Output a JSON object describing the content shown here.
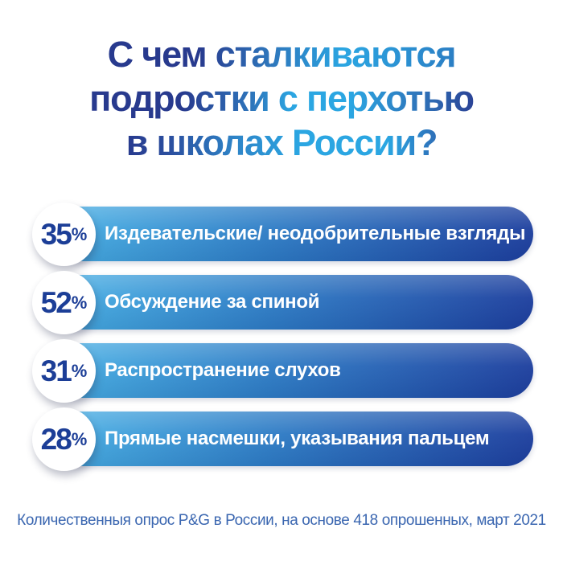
{
  "title": {
    "lines": [
      "С чем сталкиваются",
      "подростки с перхотью",
      "в школах России?"
    ],
    "full": "С чем сталкиваются подростки с перхотью в школах России?"
  },
  "chart_data": {
    "type": "bar",
    "orientation": "horizontal",
    "unit": "%",
    "title": "С чем сталкиваются подростки с перхотью в школах России?",
    "categories": [
      "Издевательские/ неодобрительные взгляды",
      "Обсуждение за спиной",
      "Распространение слухов",
      "Прямые насмешки, указывания пальцем"
    ],
    "values": [
      35,
      52,
      31,
      28
    ],
    "source": "Количественныя опрос P&G в России, на основе 418 опрошенных, март 2021",
    "layout_hint": "equal-length gradient pill bars with white circular percent badges on the left"
  },
  "ui": {
    "percent_sign": "%"
  },
  "footer": {
    "text": "Количественныя опрос P&G в России, на основе 418 опрошенных, март 2021"
  },
  "colors": {
    "background": "#ffffff",
    "title_navy": "#283a8e",
    "title_light_blue": "#2ba6e2",
    "bar_gradient_start": "#49b2e6",
    "bar_gradient_end": "#1d3f9e",
    "percent_text": "#1c3e97",
    "bar_label_text": "#ffffff",
    "badge_background": "#ffffff",
    "footer_text": "#3a66b0"
  }
}
